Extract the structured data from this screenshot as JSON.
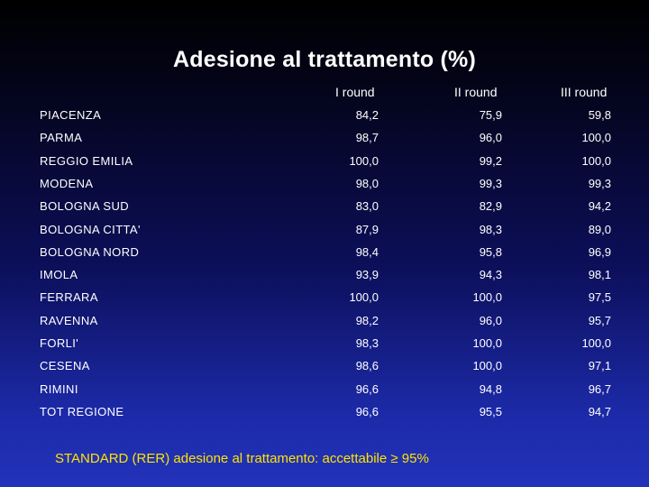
{
  "title": "Adesione al trattamento (%)",
  "columns": [
    "I round",
    "II round",
    "III round"
  ],
  "rows": [
    {
      "label": "PIACENZA",
      "values": [
        "84,2",
        "75,9",
        "59,8"
      ]
    },
    {
      "label": "PARMA",
      "values": [
        "98,7",
        "96,0",
        "100,0"
      ]
    },
    {
      "label": "REGGIO EMILIA",
      "values": [
        "100,0",
        "99,2",
        "100,0"
      ]
    },
    {
      "label": "MODENA",
      "values": [
        "98,0",
        "99,3",
        "99,3"
      ]
    },
    {
      "label": "BOLOGNA SUD",
      "values": [
        "83,0",
        "82,9",
        "94,2"
      ]
    },
    {
      "label": "BOLOGNA CITTA'",
      "values": [
        "87,9",
        "98,3",
        "89,0"
      ]
    },
    {
      "label": "BOLOGNA NORD",
      "values": [
        "98,4",
        "95,8",
        "96,9"
      ]
    },
    {
      "label": "IMOLA",
      "values": [
        "93,9",
        "94,3",
        "98,1"
      ]
    },
    {
      "label": "FERRARA",
      "values": [
        "100,0",
        "100,0",
        "97,5"
      ]
    },
    {
      "label": "RAVENNA",
      "values": [
        "98,2",
        "96,0",
        "95,7"
      ]
    },
    {
      "label": "FORLI'",
      "values": [
        "98,3",
        "100,0",
        "100,0"
      ]
    },
    {
      "label": "CESENA",
      "values": [
        "98,6",
        "100,0",
        "97,1"
      ]
    },
    {
      "label": "RIMINI",
      "values": [
        "96,6",
        "94,8",
        "96,7"
      ]
    },
    {
      "label": "TOT REGIONE",
      "values": [
        "96,6",
        "95,5",
        "94,7"
      ]
    }
  ],
  "standard_note": "STANDARD (RER) adesione al trattamento: accettabile ≥ 95%",
  "colors": {
    "text": "#ffffff",
    "note": "#ffe300"
  }
}
